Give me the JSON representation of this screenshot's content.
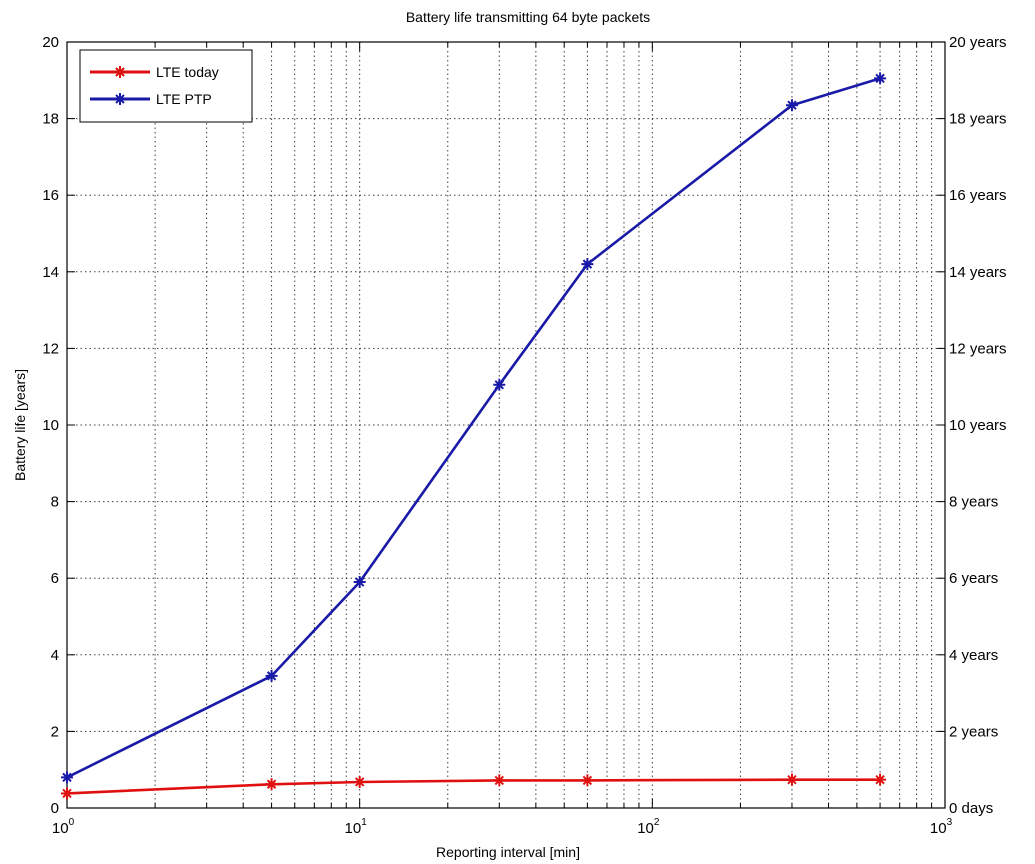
{
  "chart_data": {
    "type": "line",
    "title": "Battery life transmitting 64 byte packets",
    "xlabel": "Reporting interval [min]",
    "ylabel": "Battery life [years]",
    "x_scale": "log",
    "xlim": [
      1,
      1000
    ],
    "ylim": [
      0,
      20
    ],
    "grid": true,
    "legend_position": "top-left",
    "x_tick_labels": [
      {
        "value": 1,
        "base": "10",
        "exp": "0"
      },
      {
        "value": 10,
        "base": "10",
        "exp": "1"
      },
      {
        "value": 100,
        "base": "10",
        "exp": "2"
      },
      {
        "value": 1000,
        "base": "10",
        "exp": "3"
      }
    ],
    "y_ticks": [
      0,
      2,
      4,
      6,
      8,
      10,
      12,
      14,
      16,
      18,
      20
    ],
    "y_tick_labels": [
      "0",
      "2",
      "4",
      "6",
      "8",
      "10",
      "12",
      "14",
      "16",
      "18",
      "20"
    ],
    "right_y_ticks": [
      {
        "value": 0,
        "label": "0 days"
      },
      {
        "value": 2,
        "label": "2 years"
      },
      {
        "value": 4,
        "label": "4 years"
      },
      {
        "value": 6,
        "label": "6 years"
      },
      {
        "value": 8,
        "label": "8 years"
      },
      {
        "value": 10,
        "label": "10 years"
      },
      {
        "value": 12,
        "label": "12 years"
      },
      {
        "value": 14,
        "label": "14 years"
      },
      {
        "value": 16,
        "label": "16 years"
      },
      {
        "value": 18,
        "label": "18 years"
      },
      {
        "value": 20,
        "label": "20 years"
      }
    ],
    "series": [
      {
        "name": "LTE today",
        "color": "#e01010",
        "x": [
          1,
          5,
          10,
          30,
          60,
          300,
          600
        ],
        "y": [
          0.38,
          0.62,
          0.68,
          0.72,
          0.72,
          0.74,
          0.74
        ]
      },
      {
        "name": "LTE PTP",
        "color": "#1a1aa8",
        "x": [
          1,
          5,
          10,
          30,
          60,
          300,
          600
        ],
        "y": [
          0.8,
          3.45,
          5.9,
          11.05,
          14.2,
          18.35,
          19.05
        ]
      }
    ]
  }
}
